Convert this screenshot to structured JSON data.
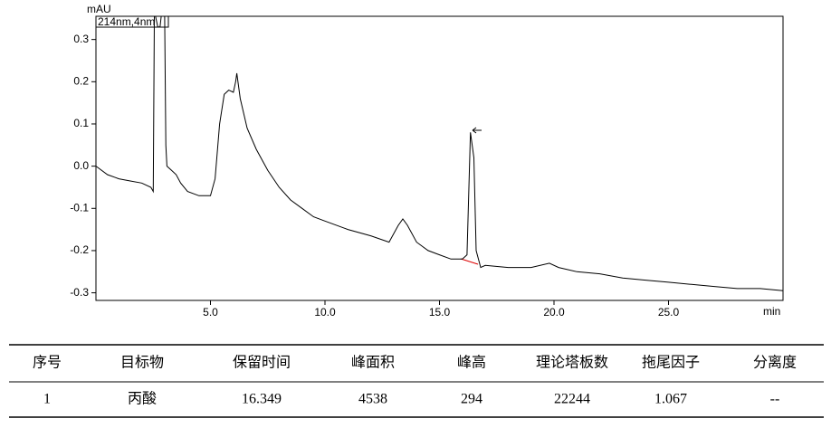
{
  "chart_data": {
    "type": "line",
    "y_label": "mAU",
    "x_label": "min",
    "legend_label": "214nm,4nm",
    "xlim": [
      0,
      30
    ],
    "ylim": [
      -0.318,
      0.355
    ],
    "xticks": [
      {
        "value": 5,
        "label": "5.0"
      },
      {
        "value": 10,
        "label": "10.0"
      },
      {
        "value": 15,
        "label": "15.0"
      },
      {
        "value": 20,
        "label": "20.0"
      },
      {
        "value": 25,
        "label": "25.0"
      }
    ],
    "yticks": [
      -0.3,
      -0.2,
      -0.1,
      {
        "value": 0,
        "label": "0.0"
      },
      0.1,
      0.2,
      0.3
    ],
    "color": "#000000",
    "x": [
      0,
      0.5,
      1,
      1.5,
      2,
      2.4,
      2.5,
      2.55,
      2.6,
      2.7,
      2.8,
      2.85,
      3.0,
      3.05,
      3.1,
      3.3,
      3.5,
      3.7,
      4,
      4.5,
      5,
      5.2,
      5.4,
      5.6,
      5.8,
      6.0,
      6.1,
      6.15,
      6.3,
      6.6,
      7,
      7.5,
      8,
      8.5,
      9,
      9.5,
      10,
      11,
      12,
      12.8,
      13.2,
      13.4,
      13.6,
      14,
      14.5,
      15,
      15.5,
      16,
      16.2,
      16.35,
      16.5,
      16.6,
      16.8,
      17,
      18,
      19,
      19.8,
      20.2,
      21,
      22,
      23,
      24,
      25,
      26,
      27,
      28,
      29,
      30
    ],
    "values": [
      0.0,
      -0.02,
      -0.03,
      -0.035,
      -0.04,
      -0.05,
      -0.06,
      0.355,
      0.355,
      0.33,
      0.33,
      0.355,
      0.355,
      0.05,
      0.0,
      -0.01,
      -0.02,
      -0.04,
      -0.06,
      -0.07,
      -0.07,
      -0.03,
      0.1,
      0.17,
      0.18,
      0.175,
      0.2,
      0.22,
      0.16,
      0.09,
      0.04,
      -0.01,
      -0.05,
      -0.08,
      -0.1,
      -0.12,
      -0.13,
      -0.15,
      -0.165,
      -0.18,
      -0.14,
      -0.125,
      -0.14,
      -0.18,
      -0.2,
      -0.21,
      -0.22,
      -0.22,
      -0.21,
      0.08,
      0.02,
      -0.2,
      -0.24,
      -0.235,
      -0.24,
      -0.24,
      -0.23,
      -0.24,
      -0.25,
      -0.255,
      -0.265,
      -0.27,
      -0.275,
      -0.28,
      -0.285,
      -0.29,
      -0.29,
      -0.295
    ]
  },
  "table": {
    "columns": [
      "序号",
      "目标物",
      "保留时间",
      "峰面积",
      "峰高",
      "理论塔板数",
      "拖尾因子",
      "分离度"
    ],
    "rows": [
      [
        1,
        "丙酸",
        16.349,
        4538,
        294,
        22244,
        1.067,
        "--"
      ]
    ]
  }
}
